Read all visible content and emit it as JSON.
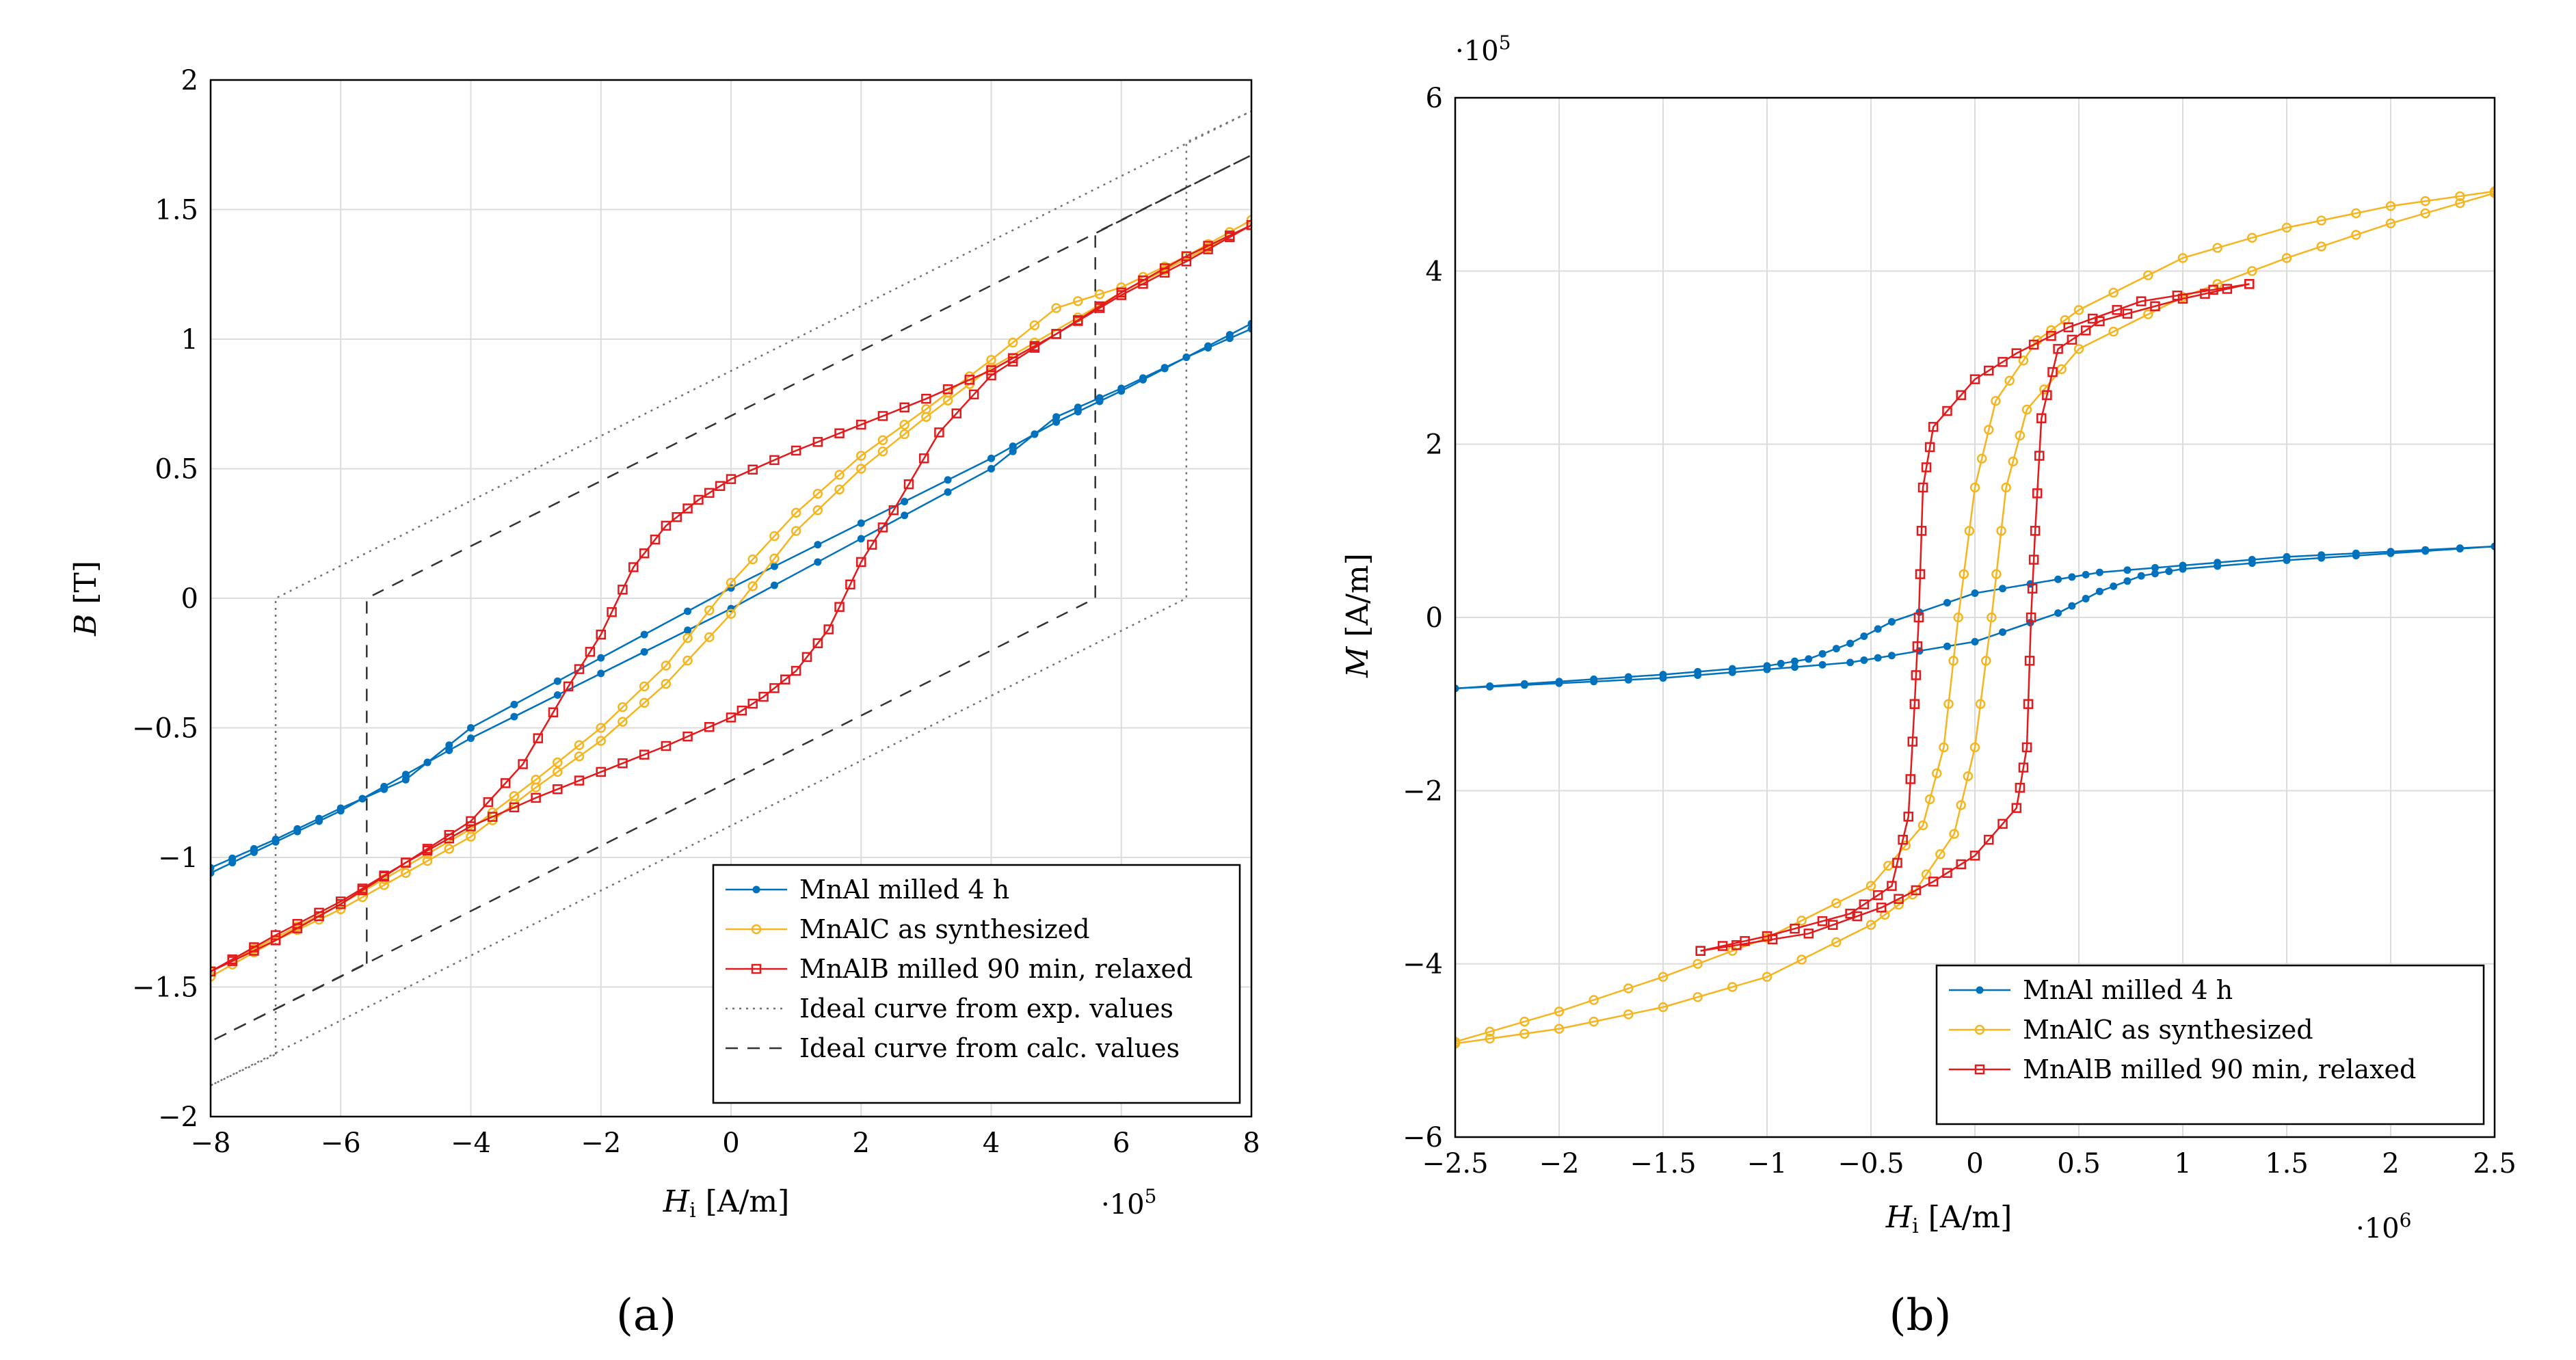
{
  "chart_data": [
    {
      "type": "line",
      "panel_label": "(a)",
      "xlabel": "Hi [A/m]",
      "xlabel_main": "H",
      "xlabel_sub": "i",
      "xlabel_unit": " [A/m]",
      "ylabel": "B [T]",
      "ylabel_main": "B",
      "ylabel_unit": " [T]",
      "x_multiplier": "·10^5",
      "x_mult_base": "·10",
      "x_mult_exp": "5",
      "xlim": [
        -8,
        8
      ],
      "ylim": [
        -2,
        2
      ],
      "xticks": [
        -8,
        -6,
        -4,
        -2,
        0,
        2,
        4,
        6,
        8
      ],
      "xtick_labels": [
        "−8",
        "−6",
        "−4",
        "−2",
        "0",
        "2",
        "4",
        "6",
        "8"
      ],
      "yticks": [
        -2,
        -1.5,
        -1,
        -0.5,
        0,
        0.5,
        1,
        1.5,
        2
      ],
      "ytick_labels": [
        "−2",
        "−1.5",
        "−1",
        "−0.5",
        "0",
        "0.5",
        "1",
        "1.5",
        "2"
      ],
      "grid": true,
      "legend_position": "bottom-right",
      "series": [
        {
          "name": "MnAl milled 4 h",
          "color": "#0072bd",
          "marker": "dot",
          "upper": [
            [
              -8,
              -1.04
            ],
            [
              -7,
              -0.93
            ],
            [
              -6,
              -0.81
            ],
            [
              -5,
              -0.7
            ],
            [
              -4,
              -0.5
            ],
            [
              -2,
              -0.23
            ],
            [
              0,
              0.04
            ],
            [
              2,
              0.29
            ],
            [
              4,
              0.54
            ],
            [
              5,
              0.68
            ],
            [
              6,
              0.8
            ],
            [
              7,
              0.93
            ],
            [
              8,
              1.06
            ]
          ],
          "lower": [
            [
              -8,
              -1.06
            ],
            [
              -7,
              -0.94
            ],
            [
              -6,
              -0.82
            ],
            [
              -5,
              -0.68
            ],
            [
              -4,
              -0.54
            ],
            [
              -2,
              -0.29
            ],
            [
              0,
              -0.04
            ],
            [
              2,
              0.23
            ],
            [
              4,
              0.5
            ],
            [
              5,
              0.7
            ],
            [
              6,
              0.81
            ],
            [
              7,
              0.93
            ],
            [
              8,
              1.04
            ]
          ]
        },
        {
          "name": "MnAlC as synthesized",
          "color": "#f5b521",
          "marker": "circle",
          "upper": [
            [
              -8,
              -1.44
            ],
            [
              -6,
              -1.18
            ],
            [
              -4,
              -0.89
            ],
            [
              -3,
              -0.7
            ],
            [
              -2,
              -0.5
            ],
            [
              -1,
              -0.26
            ],
            [
              0,
              0.06
            ],
            [
              1,
              0.33
            ],
            [
              2,
              0.55
            ],
            [
              3,
              0.73
            ],
            [
              4,
              0.92
            ],
            [
              5,
              1.12
            ],
            [
              6,
              1.2
            ],
            [
              7,
              1.32
            ],
            [
              8,
              1.46
            ]
          ],
          "lower": [
            [
              -8,
              -1.46
            ],
            [
              -7,
              -1.32
            ],
            [
              -6,
              -1.2
            ],
            [
              -5,
              -1.06
            ],
            [
              -4,
              -0.92
            ],
            [
              -3,
              -0.73
            ],
            [
              -2,
              -0.55
            ],
            [
              -1,
              -0.33
            ],
            [
              0,
              -0.06
            ],
            [
              1,
              0.26
            ],
            [
              2,
              0.5
            ],
            [
              3,
              0.7
            ],
            [
              4,
              0.89
            ],
            [
              6,
              1.18
            ],
            [
              8,
              1.44
            ]
          ]
        },
        {
          "name": "MnAlB milled 90 min, relaxed",
          "color": "#e31a1c",
          "marker": "square",
          "upper": [
            [
              -8,
              -1.44
            ],
            [
              -7,
              -1.32
            ],
            [
              -6,
              -1.18
            ],
            [
              -5,
              -1.02
            ],
            [
              -4,
              -0.86
            ],
            [
              -3.2,
              -0.64
            ],
            [
              -2.5,
              -0.34
            ],
            [
              -2,
              -0.14
            ],
            [
              -1.5,
              0.12
            ],
            [
              -1,
              0.28
            ],
            [
              -0.5,
              0.38
            ],
            [
              0,
              0.46
            ],
            [
              1,
              0.57
            ],
            [
              2,
              0.67
            ],
            [
              3,
              0.77
            ],
            [
              4,
              0.88
            ],
            [
              5,
              1.02
            ],
            [
              6,
              1.17
            ],
            [
              7,
              1.3
            ],
            [
              8,
              1.44
            ]
          ],
          "lower": [
            [
              -8,
              -1.44
            ],
            [
              -7,
              -1.3
            ],
            [
              -6,
              -1.17
            ],
            [
              -5,
              -1.02
            ],
            [
              -4,
              -0.88
            ],
            [
              -3,
              -0.77
            ],
            [
              -2,
              -0.67
            ],
            [
              -1,
              -0.57
            ],
            [
              0,
              -0.46
            ],
            [
              0.5,
              -0.38
            ],
            [
              1,
              -0.28
            ],
            [
              1.5,
              -0.12
            ],
            [
              2,
              0.14
            ],
            [
              2.5,
              0.34
            ],
            [
              3.2,
              0.64
            ],
            [
              4,
              0.86
            ],
            [
              5,
              1.02
            ],
            [
              6,
              1.18
            ],
            [
              7,
              1.32
            ],
            [
              8,
              1.44
            ]
          ]
        }
      ],
      "ideal_curves": [
        {
          "name": "Ideal curve from exp. values",
          "style": "dotted",
          "color": "#707070",
          "points": [
            [
              -7,
              -1.76
            ],
            [
              -7,
              0
            ],
            [
              8,
              1.88
            ],
            [
              7,
              1.76
            ],
            [
              7,
              0
            ],
            [
              -8,
              -1.88
            ],
            [
              -7,
              -1.76
            ]
          ]
        },
        {
          "name": "Ideal curve from calc. values",
          "style": "dashed",
          "color": "#333333",
          "points": [
            [
              -5.6,
              -1.41
            ],
            [
              -5.6,
              0
            ],
            [
              8,
              1.71
            ],
            [
              5.6,
              1.41
            ],
            [
              5.6,
              0
            ],
            [
              -8,
              -1.71
            ],
            [
              -5.6,
              -1.41
            ]
          ]
        }
      ]
    },
    {
      "type": "line",
      "panel_label": "(b)",
      "xlabel": "Hi [A/m]",
      "xlabel_main": "H",
      "xlabel_sub": "i",
      "xlabel_unit": " [A/m]",
      "ylabel": "M [A/m]",
      "ylabel_main": "M",
      "ylabel_unit": " [A/m]",
      "x_multiplier": "·10^6",
      "x_mult_base": "·10",
      "x_mult_exp": "6",
      "y_multiplier": "·10^5",
      "y_mult_base": "·10",
      "y_mult_exp": "5",
      "xlim": [
        -2.5,
        2.5
      ],
      "ylim": [
        -6,
        6
      ],
      "xticks": [
        -2.5,
        -2,
        -1.5,
        -1,
        -0.5,
        0,
        0.5,
        1,
        1.5,
        2,
        2.5
      ],
      "xtick_labels": [
        "−2.5",
        "−2",
        "−1.5",
        "−1",
        "−0.5",
        "0",
        "0.5",
        "1",
        "1.5",
        "2",
        "2.5"
      ],
      "yticks": [
        -6,
        -4,
        -2,
        0,
        2,
        4,
        6
      ],
      "ytick_labels": [
        "−6",
        "−4",
        "−2",
        "0",
        "2",
        "4",
        "6"
      ],
      "grid": true,
      "legend_position": "bottom-right",
      "series": [
        {
          "name": "MnAl milled 4 h",
          "color": "#0072bd",
          "marker": "dot",
          "upper": [
            [
              -2.5,
              -0.82
            ],
            [
              -2,
              -0.74
            ],
            [
              -1.5,
              -0.66
            ],
            [
              -1,
              -0.56
            ],
            [
              -0.8,
              -0.48
            ],
            [
              -0.6,
              -0.3
            ],
            [
              -0.4,
              -0.05
            ],
            [
              0,
              0.28
            ],
            [
              0.4,
              0.44
            ],
            [
              0.6,
              0.52
            ],
            [
              1,
              0.6
            ],
            [
              1.5,
              0.7
            ],
            [
              2,
              0.76
            ],
            [
              2.5,
              0.82
            ]
          ],
          "lower": [
            [
              -2.5,
              -0.82
            ],
            [
              -2,
              -0.76
            ],
            [
              -1.5,
              -0.7
            ],
            [
              -1,
              -0.6
            ],
            [
              -0.6,
              -0.52
            ],
            [
              -0.4,
              -0.44
            ],
            [
              0,
              -0.28
            ],
            [
              0.4,
              0.05
            ],
            [
              0.6,
              0.3
            ],
            [
              0.8,
              0.48
            ],
            [
              1,
              0.56
            ],
            [
              1.5,
              0.66
            ],
            [
              2,
              0.74
            ],
            [
              2.5,
              0.82
            ]
          ]
        },
        {
          "name": "MnAlC as synthesized",
          "color": "#f5b521",
          "marker": "circle",
          "upper": [
            [
              -2.5,
              -4.9
            ],
            [
              -2,
              -4.55
            ],
            [
              -1.5,
              -4.15
            ],
            [
              -1,
              -3.7
            ],
            [
              -0.5,
              -3.1
            ],
            [
              -0.25,
              -2.4
            ],
            [
              -0.15,
              -1.5
            ],
            [
              -0.08,
              0
            ],
            [
              0,
              1.5
            ],
            [
              0.1,
              2.5
            ],
            [
              0.3,
              3.2
            ],
            [
              0.5,
              3.55
            ],
            [
              1,
              4.15
            ],
            [
              1.5,
              4.5
            ],
            [
              2,
              4.75
            ],
            [
              2.5,
              4.92
            ]
          ],
          "lower": [
            [
              -2.5,
              -4.92
            ],
            [
              -2,
              -4.75
            ],
            [
              -1.5,
              -4.5
            ],
            [
              -1,
              -4.15
            ],
            [
              -0.5,
              -3.55
            ],
            [
              -0.3,
              -3.2
            ],
            [
              -0.1,
              -2.5
            ],
            [
              0,
              -1.5
            ],
            [
              0.08,
              0
            ],
            [
              0.15,
              1.5
            ],
            [
              0.25,
              2.4
            ],
            [
              0.5,
              3.1
            ],
            [
              1,
              3.7
            ],
            [
              1.5,
              4.15
            ],
            [
              2,
              4.55
            ],
            [
              2.5,
              4.9
            ]
          ]
        },
        {
          "name": "MnAlB milled 90 min, relaxed",
          "color": "#e31a1c",
          "marker": "square",
          "upper": [
            [
              -1.32,
              -3.85
            ],
            [
              -1,
              -3.68
            ],
            [
              -0.6,
              -3.42
            ],
            [
              -0.4,
              -3.1
            ],
            [
              -0.32,
              -2.3
            ],
            [
              -0.29,
              -1
            ],
            [
              -0.27,
              0
            ],
            [
              -0.25,
              1.5
            ],
            [
              -0.2,
              2.2
            ],
            [
              0,
              2.75
            ],
            [
              0.2,
              3.05
            ],
            [
              0.45,
              3.35
            ],
            [
              0.8,
              3.65
            ],
            [
              1.32,
              3.85
            ]
          ],
          "lower": [
            [
              -1.32,
              -3.85
            ],
            [
              -0.8,
              -3.65
            ],
            [
              -0.45,
              -3.35
            ],
            [
              -0.2,
              -3.05
            ],
            [
              0,
              -2.75
            ],
            [
              0.2,
              -2.2
            ],
            [
              0.25,
              -1.5
            ],
            [
              0.27,
              0
            ],
            [
              0.29,
              1
            ],
            [
              0.32,
              2.3
            ],
            [
              0.4,
              3.1
            ],
            [
              0.6,
              3.42
            ],
            [
              1,
              3.68
            ],
            [
              1.32,
              3.85
            ]
          ]
        }
      ]
    }
  ]
}
